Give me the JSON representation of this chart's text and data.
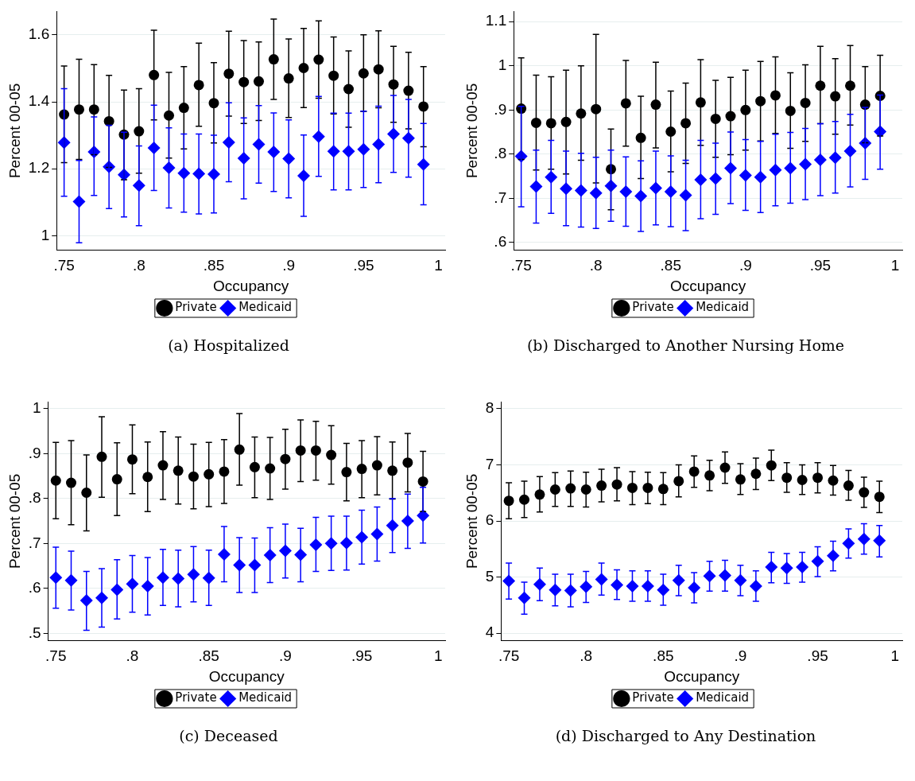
{
  "chart_data": [
    {
      "type": "scatter",
      "title": "(a) Hospitalized",
      "xlabel": "Occupancy",
      "ylabel": "Percent 00-05",
      "grid": "y",
      "legend": "bottom",
      "x": [
        0.75,
        0.76,
        0.77,
        0.78,
        0.79,
        0.8,
        0.81,
        0.82,
        0.83,
        0.84,
        0.85,
        0.86,
        0.87,
        0.88,
        0.89,
        0.9,
        0.91,
        0.92,
        0.93,
        0.94,
        0.95,
        0.96,
        0.97,
        0.98,
        0.99
      ],
      "xlim": [
        0.745,
        1.0045
      ],
      "xticks": [
        {
          "value": 0.75,
          "label": ".75"
        },
        {
          "value": 0.8,
          "label": ".8"
        },
        {
          "value": 0.85,
          "label": ".85"
        },
        {
          "value": 0.9,
          "label": ".9"
        },
        {
          "value": 0.95,
          "label": ".95"
        },
        {
          "value": 1,
          "label": "1"
        }
      ],
      "ylim": [
        0.957,
        1.67
      ],
      "yticks": [
        1,
        1.2,
        1.4,
        1.6
      ],
      "series": [
        {
          "name": "Private",
          "color": "#000000",
          "marker": "circle",
          "values": [
            1.362,
            1.377,
            1.377,
            1.342,
            1.302,
            1.312,
            1.48,
            1.359,
            1.382,
            1.45,
            1.396,
            1.484,
            1.459,
            1.461,
            1.527,
            1.47,
            1.501,
            1.526,
            1.478,
            1.438,
            1.485,
            1.497,
            1.452,
            1.433,
            1.386
          ],
          "errors": [
            [
              1.218,
              1.507
            ],
            [
              1.228,
              1.527
            ],
            [
              1.242,
              1.511
            ],
            [
              1.204,
              1.479
            ],
            [
              1.167,
              1.435
            ],
            [
              1.187,
              1.439
            ],
            [
              1.346,
              1.614
            ],
            [
              1.232,
              1.488
            ],
            [
              1.259,
              1.505
            ],
            [
              1.327,
              1.575
            ],
            [
              1.277,
              1.517
            ],
            [
              1.357,
              1.611
            ],
            [
              1.335,
              1.583
            ],
            [
              1.344,
              1.579
            ],
            [
              1.407,
              1.647
            ],
            [
              1.353,
              1.588
            ],
            [
              1.383,
              1.619
            ],
            [
              1.411,
              1.642
            ],
            [
              1.364,
              1.594
            ],
            [
              1.324,
              1.552
            ],
            [
              1.371,
              1.6
            ],
            [
              1.382,
              1.612
            ],
            [
              1.339,
              1.566
            ],
            [
              1.319,
              1.548
            ],
            [
              1.266,
              1.505
            ]
          ]
        },
        {
          "name": "Medicaid",
          "color": "#0000ff",
          "marker": "diamond",
          "values": [
            1.278,
            1.102,
            1.25,
            1.206,
            1.182,
            1.15,
            1.262,
            1.203,
            1.187,
            1.185,
            1.184,
            1.279,
            1.231,
            1.273,
            1.25,
            1.23,
            1.179,
            1.296,
            1.252,
            1.252,
            1.258,
            1.273,
            1.304,
            1.291,
            1.213
          ],
          "errors": [
            [
              1.118,
              1.439
            ],
            [
              0.979,
              1.225
            ],
            [
              1.12,
              1.355
            ],
            [
              1.081,
              1.33
            ],
            [
              1.056,
              1.309
            ],
            [
              1.03,
              1.268
            ],
            [
              1.135,
              1.39
            ],
            [
              1.083,
              1.322
            ],
            [
              1.07,
              1.304
            ],
            [
              1.065,
              1.304
            ],
            [
              1.068,
              1.3
            ],
            [
              1.161,
              1.397
            ],
            [
              1.11,
              1.352
            ],
            [
              1.157,
              1.389
            ],
            [
              1.132,
              1.367
            ],
            [
              1.113,
              1.346
            ],
            [
              1.058,
              1.301
            ],
            [
              1.177,
              1.416
            ],
            [
              1.137,
              1.366
            ],
            [
              1.137,
              1.366
            ],
            [
              1.144,
              1.372
            ],
            [
              1.158,
              1.387
            ],
            [
              1.189,
              1.419
            ],
            [
              1.175,
              1.407
            ],
            [
              1.092,
              1.335
            ]
          ]
        }
      ]
    },
    {
      "type": "scatter",
      "title": "(b) Discharged to Another Nursing Home",
      "xlabel": "Occupancy",
      "ylabel": "Percent 00-05",
      "grid": "y",
      "legend": "bottom",
      "x": [
        0.75,
        0.76,
        0.77,
        0.78,
        0.79,
        0.8,
        0.81,
        0.82,
        0.83,
        0.84,
        0.85,
        0.86,
        0.87,
        0.88,
        0.89,
        0.9,
        0.91,
        0.92,
        0.93,
        0.94,
        0.95,
        0.96,
        0.97,
        0.98,
        0.99
      ],
      "xlim": [
        0.745,
        1.0048
      ],
      "xticks": [
        {
          "value": 0.75,
          "label": ".75"
        },
        {
          "value": 0.8,
          "label": ".8"
        },
        {
          "value": 0.85,
          "label": ".85"
        },
        {
          "value": 0.9,
          "label": ".9"
        },
        {
          "value": 0.95,
          "label": ".95"
        },
        {
          "value": 1,
          "label": "1"
        }
      ],
      "ylim": [
        0.583,
        1.123
      ],
      "yticks": [
        {
          "value": 0.6,
          "label": ".6"
        },
        {
          "value": 0.7,
          "label": ".7"
        },
        {
          "value": 0.8,
          "label": ".8"
        },
        {
          "value": 0.9,
          "label": ".9"
        },
        1,
        1.1
      ],
      "series": [
        {
          "name": "Private",
          "color": "#000000",
          "marker": "circle",
          "values": [
            0.903,
            0.871,
            0.87,
            0.873,
            0.892,
            0.902,
            0.766,
            0.915,
            0.837,
            0.912,
            0.851,
            0.87,
            0.917,
            0.88,
            0.886,
            0.9,
            0.92,
            0.933,
            0.898,
            0.916,
            0.955,
            0.931,
            0.955,
            0.912,
            0.932
          ],
          "errors": [
            [
              0.788,
              1.018
            ],
            [
              0.764,
              0.979
            ],
            [
              0.766,
              0.975
            ],
            [
              0.755,
              0.99
            ],
            [
              0.786,
              1.0
            ],
            [
              0.735,
              1.071
            ],
            [
              0.674,
              0.857
            ],
            [
              0.818,
              1.012
            ],
            [
              0.745,
              0.931
            ],
            [
              0.814,
              1.008
            ],
            [
              0.76,
              0.943
            ],
            [
              0.779,
              0.961
            ],
            [
              0.82,
              1.014
            ],
            [
              0.793,
              0.967
            ],
            [
              0.799,
              0.974
            ],
            [
              0.809,
              0.99
            ],
            [
              0.83,
              1.01
            ],
            [
              0.847,
              1.02
            ],
            [
              0.813,
              0.984
            ],
            [
              0.829,
              1.002
            ],
            [
              0.869,
              1.044
            ],
            [
              0.845,
              1.016
            ],
            [
              0.866,
              1.046
            ],
            [
              0.826,
              0.998
            ],
            [
              0.841,
              1.024
            ]
          ]
        },
        {
          "name": "Medicaid",
          "color": "#0000ff",
          "marker": "diamond",
          "values": [
            0.795,
            0.727,
            0.748,
            0.722,
            0.718,
            0.712,
            0.728,
            0.715,
            0.705,
            0.723,
            0.715,
            0.707,
            0.742,
            0.745,
            0.768,
            0.752,
            0.748,
            0.764,
            0.768,
            0.777,
            0.787,
            0.792,
            0.807,
            0.825,
            0.851
          ],
          "errors": [
            [
              0.681,
              0.908
            ],
            [
              0.644,
              0.809
            ],
            [
              0.666,
              0.831
            ],
            [
              0.638,
              0.807
            ],
            [
              0.635,
              0.802
            ],
            [
              0.632,
              0.793
            ],
            [
              0.648,
              0.809
            ],
            [
              0.637,
              0.794
            ],
            [
              0.625,
              0.785
            ],
            [
              0.64,
              0.807
            ],
            [
              0.636,
              0.796
            ],
            [
              0.627,
              0.786
            ],
            [
              0.654,
              0.831
            ],
            [
              0.664,
              0.825
            ],
            [
              0.688,
              0.85
            ],
            [
              0.673,
              0.833
            ],
            [
              0.668,
              0.829
            ],
            [
              0.683,
              0.845
            ],
            [
              0.689,
              0.849
            ],
            [
              0.697,
              0.858
            ],
            [
              0.706,
              0.869
            ],
            [
              0.712,
              0.874
            ],
            [
              0.726,
              0.89
            ],
            [
              0.743,
              0.906
            ],
            [
              0.766,
              0.934
            ]
          ]
        }
      ]
    },
    {
      "type": "scatter",
      "title": "(c) Deceased",
      "xlabel": "Occupancy",
      "ylabel": "Percent 00-05",
      "grid": "y",
      "legend": "bottom",
      "x": [
        0.75,
        0.76,
        0.77,
        0.78,
        0.79,
        0.8,
        0.81,
        0.82,
        0.83,
        0.84,
        0.85,
        0.86,
        0.87,
        0.88,
        0.89,
        0.9,
        0.91,
        0.92,
        0.93,
        0.94,
        0.95,
        0.96,
        0.97,
        0.98,
        0.99
      ],
      "xlim": [
        0.745,
        1.0045
      ],
      "xticks": [
        {
          "value": 0.75,
          "label": ".75"
        },
        {
          "value": 0.8,
          "label": ".8"
        },
        {
          "value": 0.85,
          "label": ".85"
        },
        {
          "value": 0.9,
          "label": ".9"
        },
        {
          "value": 0.95,
          "label": ".95"
        },
        {
          "value": 1,
          "label": "1"
        }
      ],
      "ylim": [
        0.484,
        1.015
      ],
      "yticks": [
        {
          "value": 0.5,
          "label": ".5"
        },
        {
          "value": 0.6,
          "label": ".6"
        },
        {
          "value": 0.7,
          "label": ".7"
        },
        {
          "value": 0.8,
          "label": ".8"
        },
        {
          "value": 0.9,
          "label": ".9"
        },
        1
      ],
      "series": [
        {
          "name": "Private",
          "color": "#000000",
          "marker": "circle",
          "values": [
            0.84,
            0.835,
            0.813,
            0.893,
            0.843,
            0.887,
            0.848,
            0.874,
            0.862,
            0.849,
            0.854,
            0.86,
            0.909,
            0.87,
            0.867,
            0.888,
            0.907,
            0.907,
            0.897,
            0.859,
            0.866,
            0.874,
            0.862,
            0.88,
            0.838
          ],
          "errors": [
            [
              0.755,
              0.925
            ],
            [
              0.742,
              0.929
            ],
            [
              0.728,
              0.897
            ],
            [
              0.803,
              0.982
            ],
            [
              0.762,
              0.924
            ],
            [
              0.811,
              0.964
            ],
            [
              0.771,
              0.926
            ],
            [
              0.798,
              0.949
            ],
            [
              0.788,
              0.937
            ],
            [
              0.777,
              0.921
            ],
            [
              0.782,
              0.925
            ],
            [
              0.789,
              0.931
            ],
            [
              0.83,
              0.989
            ],
            [
              0.802,
              0.937
            ],
            [
              0.798,
              0.936
            ],
            [
              0.821,
              0.954
            ],
            [
              0.838,
              0.975
            ],
            [
              0.841,
              0.972
            ],
            [
              0.832,
              0.962
            ],
            [
              0.795,
              0.923
            ],
            [
              0.802,
              0.929
            ],
            [
              0.808,
              0.938
            ],
            [
              0.799,
              0.926
            ],
            [
              0.815,
              0.945
            ],
            [
              0.771,
              0.905
            ]
          ]
        },
        {
          "name": "Medicaid",
          "color": "#0000ff",
          "marker": "diamond",
          "values": [
            0.624,
            0.618,
            0.573,
            0.579,
            0.597,
            0.61,
            0.605,
            0.624,
            0.622,
            0.631,
            0.623,
            0.676,
            0.652,
            0.652,
            0.674,
            0.684,
            0.675,
            0.697,
            0.7,
            0.701,
            0.714,
            0.721,
            0.74,
            0.75,
            0.762
          ],
          "errors": [
            [
              0.556,
              0.692
            ],
            [
              0.552,
              0.683
            ],
            [
              0.507,
              0.638
            ],
            [
              0.514,
              0.644
            ],
            [
              0.532,
              0.664
            ],
            [
              0.547,
              0.673
            ],
            [
              0.541,
              0.669
            ],
            [
              0.562,
              0.687
            ],
            [
              0.559,
              0.685
            ],
            [
              0.57,
              0.693
            ],
            [
              0.562,
              0.685
            ],
            [
              0.615,
              0.738
            ],
            [
              0.591,
              0.713
            ],
            [
              0.591,
              0.712
            ],
            [
              0.613,
              0.735
            ],
            [
              0.623,
              0.743
            ],
            [
              0.615,
              0.734
            ],
            [
              0.638,
              0.758
            ],
            [
              0.64,
              0.761
            ],
            [
              0.641,
              0.761
            ],
            [
              0.654,
              0.774
            ],
            [
              0.661,
              0.781
            ],
            [
              0.68,
              0.8
            ],
            [
              0.689,
              0.81
            ],
            [
              0.701,
              0.825
            ]
          ]
        }
      ]
    },
    {
      "type": "scatter",
      "title": "(d) Discharged to Any Destination",
      "xlabel": "Occupancy",
      "ylabel": "Percent 00-05",
      "grid": "y",
      "legend": "bottom",
      "x": [
        0.75,
        0.76,
        0.77,
        0.78,
        0.79,
        0.8,
        0.81,
        0.82,
        0.83,
        0.84,
        0.85,
        0.86,
        0.87,
        0.88,
        0.89,
        0.9,
        0.91,
        0.92,
        0.93,
        0.94,
        0.95,
        0.96,
        0.97,
        0.98,
        0.99
      ],
      "xlim": [
        0.745,
        1.0048
      ],
      "xticks": [
        {
          "value": 0.75,
          "label": ".75"
        },
        {
          "value": 0.8,
          "label": ".8"
        },
        {
          "value": 0.85,
          "label": ".85"
        },
        {
          "value": 0.9,
          "label": ".9"
        },
        {
          "value": 0.95,
          "label": ".95"
        },
        {
          "value": 1,
          "label": "1"
        }
      ],
      "ylim": [
        3.87,
        8.12
      ],
      "yticks": [
        4,
        5,
        6,
        7,
        8
      ],
      "series": [
        {
          "name": "Private",
          "color": "#000000",
          "marker": "circle",
          "values": [
            6.36,
            6.38,
            6.47,
            6.56,
            6.58,
            6.56,
            6.63,
            6.65,
            6.59,
            6.59,
            6.57,
            6.71,
            6.88,
            6.81,
            6.95,
            6.74,
            6.84,
            6.99,
            6.77,
            6.73,
            6.77,
            6.72,
            6.63,
            6.51,
            6.43
          ],
          "errors": [
            [
              6.04,
              6.68
            ],
            [
              6.06,
              6.71
            ],
            [
              6.16,
              6.79
            ],
            [
              6.26,
              6.86
            ],
            [
              6.26,
              6.89
            ],
            [
              6.25,
              6.87
            ],
            [
              6.34,
              6.92
            ],
            [
              6.36,
              6.95
            ],
            [
              6.29,
              6.88
            ],
            [
              6.31,
              6.87
            ],
            [
              6.29,
              6.86
            ],
            [
              6.43,
              7.0
            ],
            [
              6.6,
              7.16
            ],
            [
              6.54,
              7.08
            ],
            [
              6.67,
              7.23
            ],
            [
              6.47,
              7.02
            ],
            [
              6.56,
              7.12
            ],
            [
              6.72,
              7.26
            ],
            [
              6.51,
              7.04
            ],
            [
              6.47,
              7.0
            ],
            [
              6.5,
              7.04
            ],
            [
              6.46,
              6.99
            ],
            [
              6.37,
              6.9
            ],
            [
              6.24,
              6.78
            ],
            [
              6.15,
              6.71
            ]
          ]
        },
        {
          "name": "Medicaid",
          "color": "#0000ff",
          "marker": "diamond",
          "values": [
            4.93,
            4.63,
            4.87,
            4.77,
            4.76,
            4.83,
            4.96,
            4.86,
            4.84,
            4.84,
            4.77,
            4.94,
            4.81,
            5.02,
            5.03,
            4.94,
            4.84,
            5.18,
            5.16,
            5.18,
            5.28,
            5.38,
            5.6,
            5.68,
            5.65
          ],
          "errors": [
            [
              4.61,
              5.25
            ],
            [
              4.34,
              4.91
            ],
            [
              4.58,
              5.16
            ],
            [
              4.49,
              5.05
            ],
            [
              4.47,
              5.05
            ],
            [
              4.55,
              5.1
            ],
            [
              4.68,
              5.25
            ],
            [
              4.6,
              5.13
            ],
            [
              4.57,
              5.11
            ],
            [
              4.57,
              5.11
            ],
            [
              4.5,
              5.05
            ],
            [
              4.67,
              5.21
            ],
            [
              4.54,
              5.08
            ],
            [
              4.75,
              5.28
            ],
            [
              4.75,
              5.3
            ],
            [
              4.67,
              5.21
            ],
            [
              4.57,
              5.11
            ],
            [
              4.9,
              5.44
            ],
            [
              4.89,
              5.42
            ],
            [
              4.91,
              5.44
            ],
            [
              5.01,
              5.54
            ],
            [
              5.11,
              5.64
            ],
            [
              5.34,
              5.86
            ],
            [
              5.41,
              5.95
            ],
            [
              5.36,
              5.92
            ]
          ]
        }
      ]
    }
  ]
}
